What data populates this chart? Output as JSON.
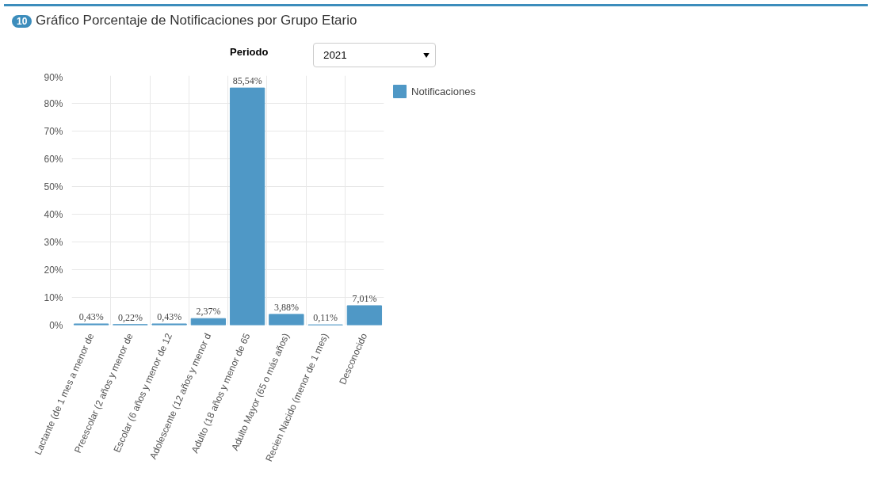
{
  "chart_data": {
    "type": "bar",
    "title": "Gráfico Porcentaje de Notificaciones por Grupo Etario",
    "annotations": [
      "10",
      "Periodo",
      "2021"
    ],
    "categories": [
      "Lactante (de 1 mes a menor de",
      "Preescolar (2 años y menor de",
      "Escolar (6 años y menor de 12",
      "Adolescente (12 años y menor d",
      "Adulto (18 años y menor de 65",
      "Adulto Mayor (65 o más años)",
      "Recien Nacido (menor de 1 mes)",
      "Desconocido"
    ],
    "series": [
      {
        "name": "Notificaciones",
        "color": "#4f98c6",
        "values": [
          0.43,
          0.22,
          0.43,
          2.37,
          85.54,
          3.88,
          0.11,
          7.01
        ],
        "value_labels": [
          "0,43%",
          "0,22%",
          "0,43%",
          "2,37%",
          "85,54%",
          "3,88%",
          "0,11%",
          "7,01%"
        ]
      }
    ],
    "ylim": [
      0,
      90
    ],
    "yticks": [
      {
        "value": 0,
        "label": "0%"
      },
      {
        "value": 10,
        "label": "10%"
      },
      {
        "value": 20,
        "label": "20%"
      },
      {
        "value": 30,
        "label": "30%"
      },
      {
        "value": 40,
        "label": "40%"
      },
      {
        "value": 50,
        "label": "50%"
      },
      {
        "value": 60,
        "label": "60%"
      },
      {
        "value": 70,
        "label": "70%"
      },
      {
        "value": 80,
        "label": "80%"
      },
      {
        "value": 90,
        "label": "90%"
      }
    ],
    "grid": true,
    "legend": "right"
  }
}
